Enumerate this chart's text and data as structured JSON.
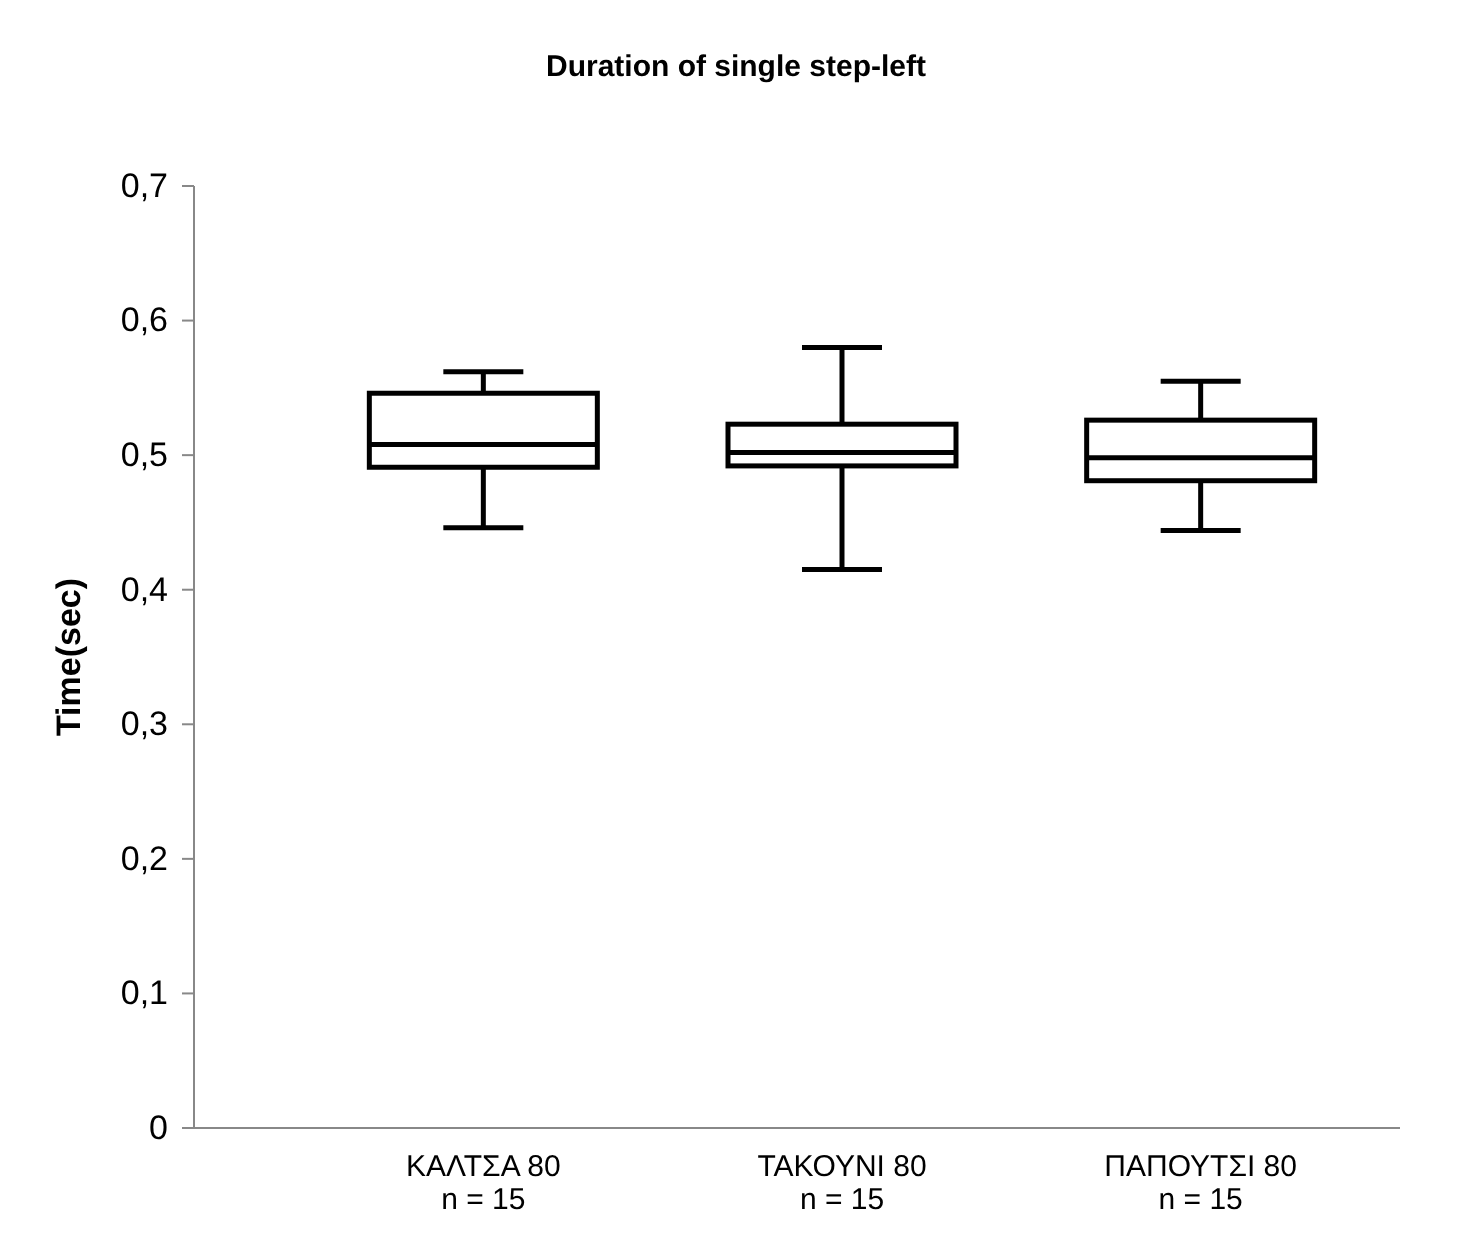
{
  "chart_data": {
    "type": "box",
    "title": "Duration of single step-left",
    "ylabel": "Time(sec)",
    "categories": [
      "ΚΑΛΤΣΑ 80\nn = 15",
      "ΤΑΚΟΥΝΙ 80\nn = 15",
      "ΠΑΠΟΥΤΣΙ 80\nn = 15"
    ],
    "boxes": [
      {
        "low": 0.446,
        "q1": 0.491,
        "median": 0.508,
        "q3": 0.546,
        "high": 0.562
      },
      {
        "low": 0.415,
        "q1": 0.492,
        "median": 0.502,
        "q3": 0.523,
        "high": 0.58
      },
      {
        "low": 0.444,
        "q1": 0.481,
        "median": 0.498,
        "q3": 0.526,
        "high": 0.555
      }
    ],
    "color": "#000000",
    "ylim": [
      0,
      0.7
    ],
    "yticks": [
      {
        "value": 0,
        "label": "0"
      },
      {
        "value": 0.1,
        "label": "0,1"
      },
      {
        "value": 0.2,
        "label": "0,2"
      },
      {
        "value": 0.3,
        "label": "0,3"
      },
      {
        "value": 0.4,
        "label": "0,4"
      },
      {
        "value": 0.5,
        "label": "0,5"
      },
      {
        "value": 0.6,
        "label": "0,6"
      },
      {
        "value": 0.7,
        "label": "0,7"
      }
    ],
    "grid": false
  }
}
